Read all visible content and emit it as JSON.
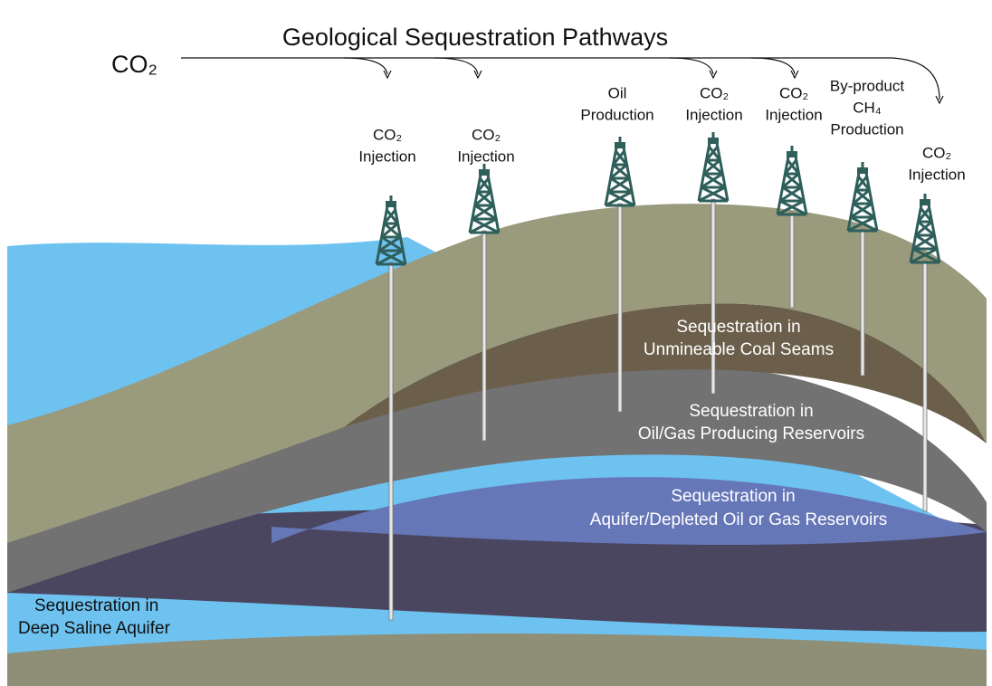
{
  "title": "Geological Sequestration Pathways",
  "source": "CO₂",
  "wells": [
    {
      "label": [
        "CO₂",
        "Injection"
      ]
    },
    {
      "label": [
        "CO₂",
        "Injection"
      ]
    },
    {
      "label": [
        "Oil",
        "Production"
      ]
    },
    {
      "label": [
        "CO₂",
        "Injection"
      ]
    },
    {
      "label": [
        "CO₂",
        "Injection"
      ]
    },
    {
      "label": [
        "By-product",
        "CH₄",
        "Production"
      ]
    },
    {
      "label": [
        "CO₂",
        "Injection"
      ]
    }
  ],
  "zones": [
    {
      "label": [
        "Sequestration in",
        "Unmineable Coal Seams"
      ]
    },
    {
      "label": [
        "Sequestration in",
        "Oil/Gas Producing Reservoirs"
      ]
    },
    {
      "label": [
        "Sequestration in",
        "Aquifer/Depleted Oil or Gas Reservoirs"
      ]
    },
    {
      "label": [
        "Sequestration in",
        "Deep Saline Aquifer"
      ]
    }
  ]
}
